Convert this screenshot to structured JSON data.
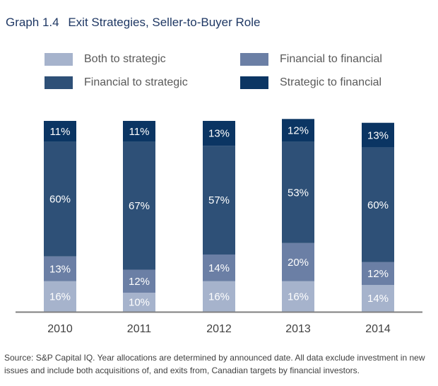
{
  "title": {
    "number": "Graph 1.4",
    "text": "Exit Strategies, Seller-to-Buyer Role"
  },
  "colors": {
    "both_to_strategic": "#a6b3cc",
    "financial_to_financial": "#6b7fa5",
    "financial_to_strategic": "#2e5077",
    "strategic_to_financial": "#0b3563",
    "axis": "#7f7f7f",
    "label_light": "#ffffff",
    "label_dark": "#ffffff"
  },
  "chart_data": {
    "type": "bar",
    "stacked": true,
    "categories": [
      "2010",
      "2011",
      "2012",
      "2013",
      "2014"
    ],
    "series": [
      {
        "name": "Both to strategic",
        "color_key": "both_to_strategic",
        "values": [
          16,
          10,
          16,
          16,
          14
        ]
      },
      {
        "name": "Financial to financial",
        "color_key": "financial_to_financial",
        "values": [
          13,
          12,
          14,
          20,
          12
        ]
      },
      {
        "name": "Financial to strategic",
        "color_key": "financial_to_strategic",
        "values": [
          60,
          67,
          57,
          53,
          60
        ]
      },
      {
        "name": "Strategic to financial",
        "color_key": "strategic_to_financial",
        "values": [
          11,
          11,
          13,
          12,
          13
        ]
      }
    ],
    "value_suffix": "%",
    "ylim": [
      0,
      100
    ],
    "grid": false,
    "legend_position": "top"
  },
  "legend_order": [
    "Both to strategic",
    "Financial to financial",
    "Financial to strategic",
    "Strategic to financial"
  ],
  "source": "Source: S&P Capital IQ. Year allocations are determined by announced date. All data exclude investment in new issues and include both acquisitions of, and exits from, Canadian targets by financial investors."
}
